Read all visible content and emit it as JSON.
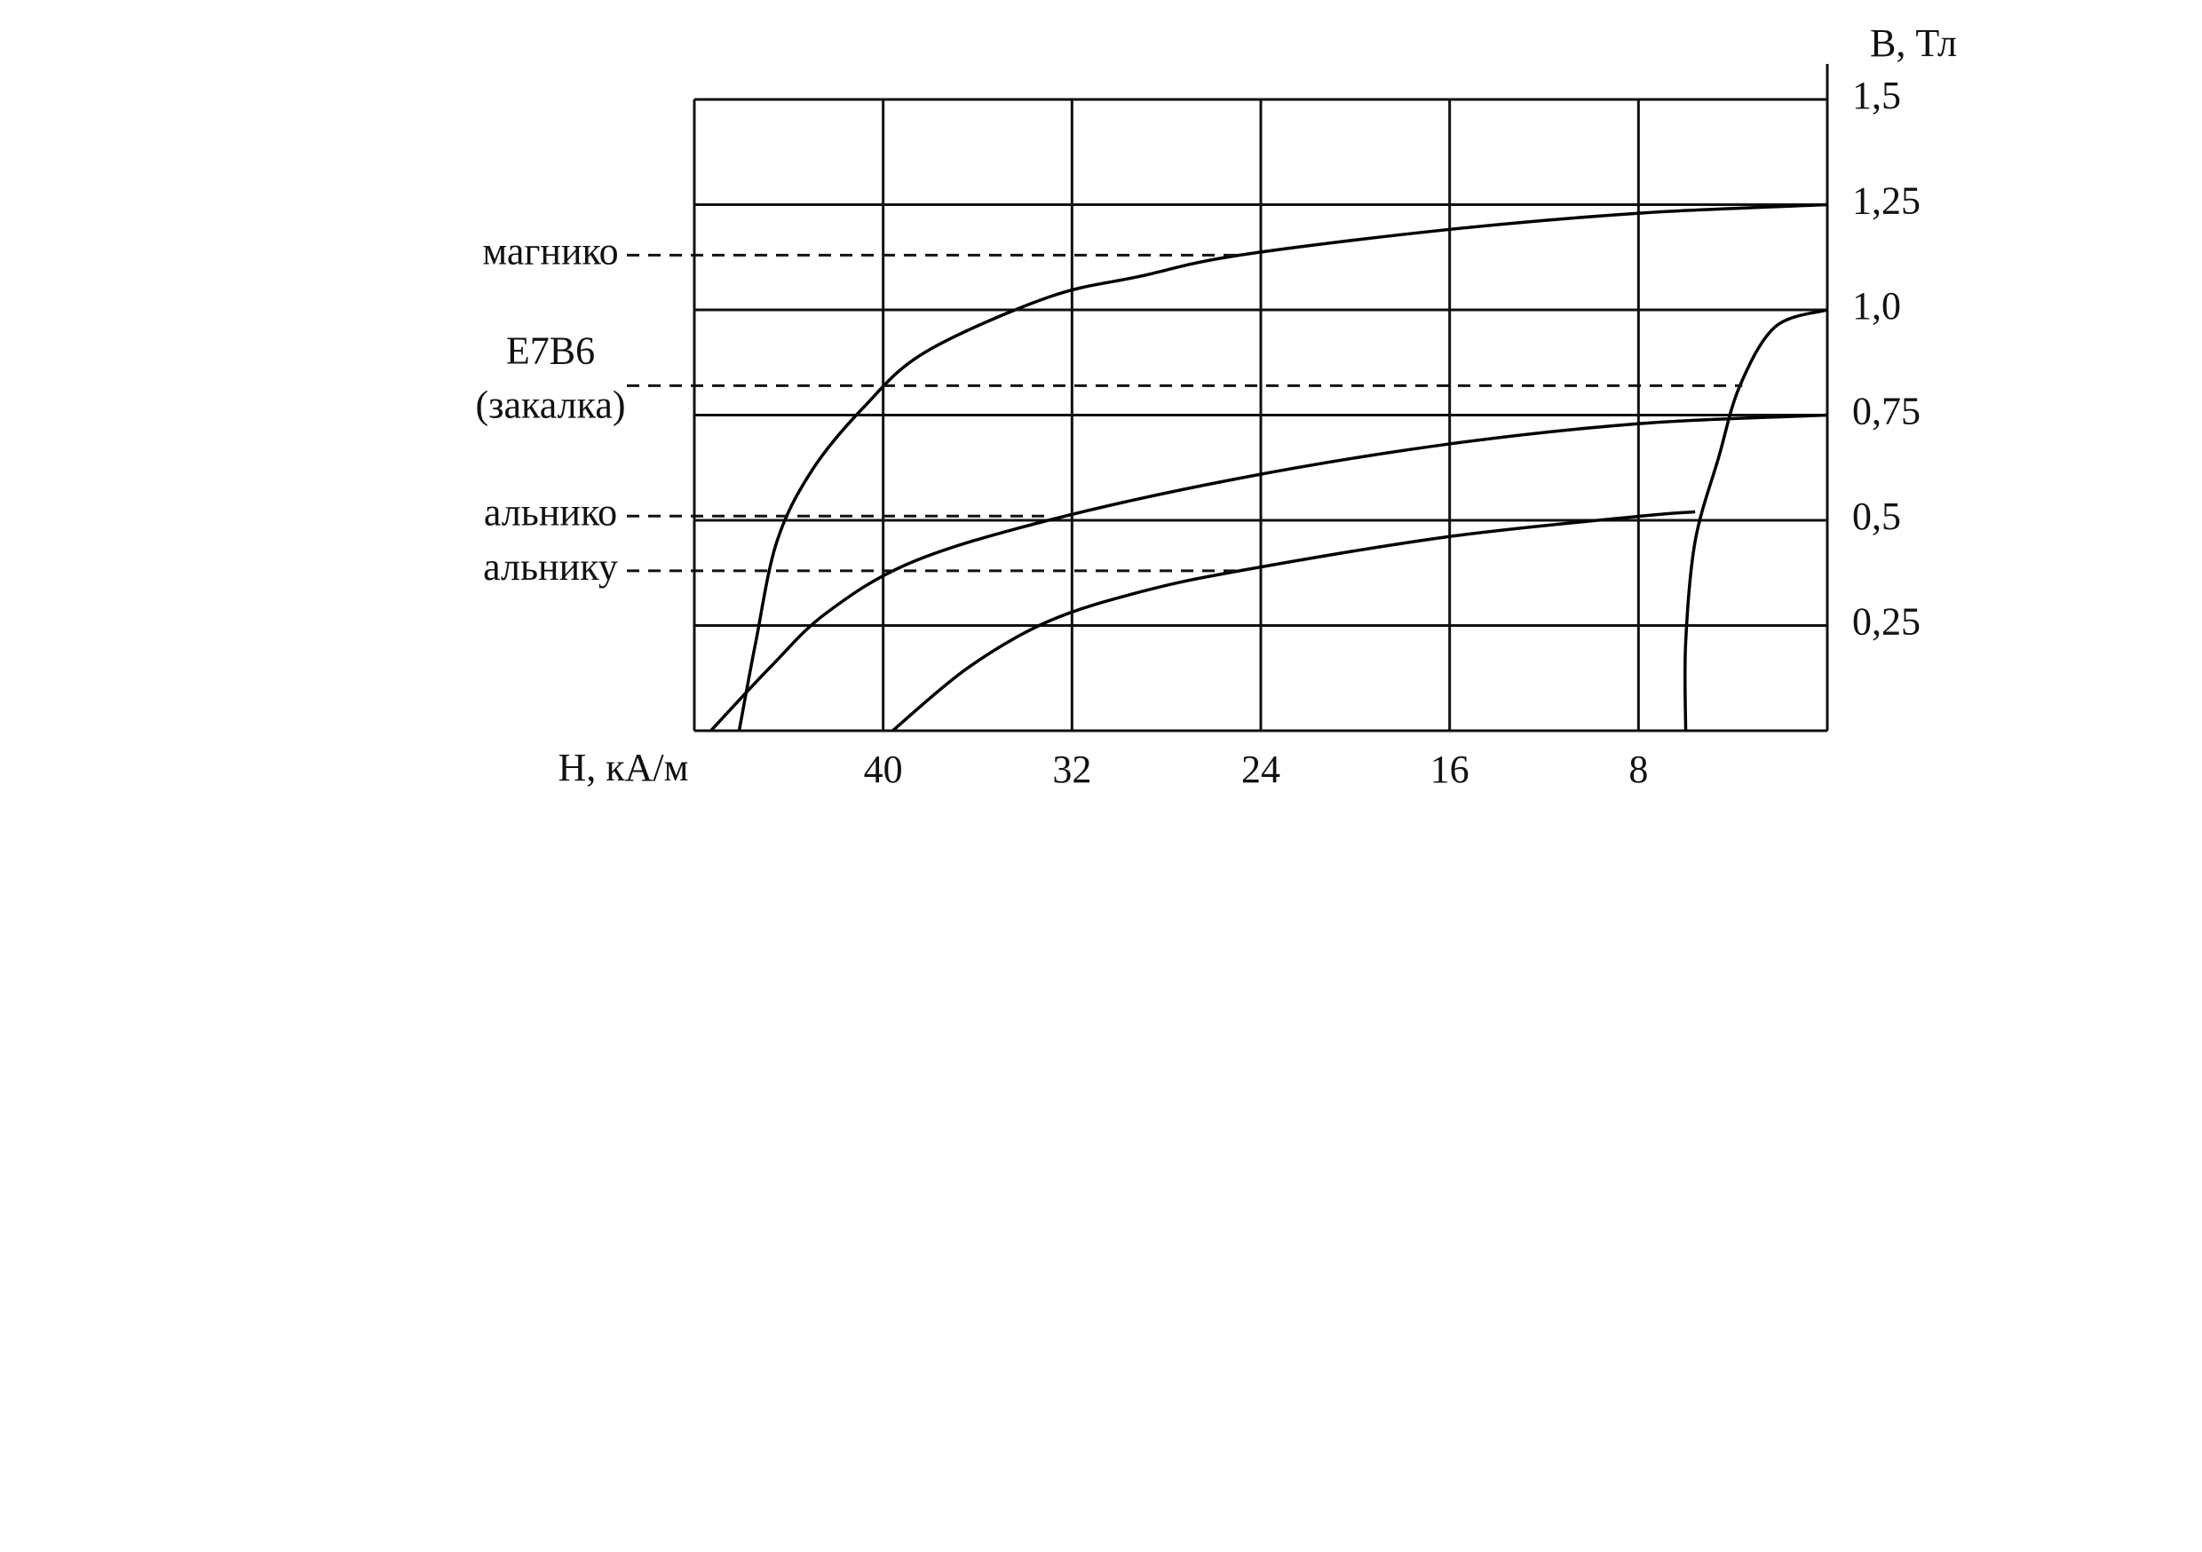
{
  "chart_data": {
    "type": "line",
    "x_label": "H, кА/м",
    "y_label": "B, Тл",
    "xlim": [
      48,
      0
    ],
    "xticks": [
      40,
      32,
      24,
      16,
      8
    ],
    "ylim": [
      0,
      1.5
    ],
    "yticks": [
      {
        "value": 0.25,
        "label": "0,25"
      },
      {
        "value": 0.5,
        "label": "0,5"
      },
      {
        "value": 0.75,
        "label": "0,75"
      },
      {
        "value": 1.0,
        "label": "1,0"
      },
      {
        "value": 1.25,
        "label": "1,25"
      },
      {
        "value": 1.5,
        "label": "1,5"
      }
    ],
    "grid": true,
    "series": [
      {
        "color": "#000000",
        "x": [
          46.1,
          45.4,
          44.5,
          43.0,
          40.8,
          38.2,
          33.0,
          29.1,
          24.9,
          16.2,
          7.9,
          0
        ],
        "values": [
          0,
          0.21,
          0.45,
          0.62,
          0.77,
          0.9,
          1.03,
          1.08,
          1.13,
          1.19,
          1.23,
          1.25
        ]
      },
      {
        "color": "#000000",
        "x": [
          47.3,
          44.8,
          42.4,
          38.8,
          33.0,
          24.9,
          16.2,
          7.9,
          0
        ],
        "values": [
          0,
          0.15,
          0.28,
          0.4,
          0.5,
          0.6,
          0.68,
          0.73,
          0.75
        ]
      },
      {
        "color": "#000000",
        "x": [
          39.6,
          36.4,
          33.0,
          29.1,
          24.9,
          16.2,
          7.9,
          5.6
        ],
        "values": [
          0,
          0.15,
          0.26,
          0.33,
          0.38,
          0.46,
          0.51,
          0.52
        ]
      },
      {
        "color": "#000000",
        "x": [
          6.0,
          6.0,
          5.6,
          4.6,
          3.7,
          2.2,
          0
        ],
        "values": [
          0,
          0.21,
          0.45,
          0.65,
          0.82,
          0.96,
          1.0
        ]
      }
    ],
    "annotations": [
      {
        "lines": [
          "магнико"
        ],
        "y": 1.13,
        "x": 24.9
      },
      {
        "lines": [
          "E7B6",
          "(закалка)"
        ],
        "y": 0.82,
        "x": 3.6
      },
      {
        "lines": [
          "альнико"
        ],
        "y": 0.51,
        "x": 33.0
      },
      {
        "lines": [
          "альнику"
        ],
        "y": 0.38,
        "x": 24.9
      }
    ]
  }
}
